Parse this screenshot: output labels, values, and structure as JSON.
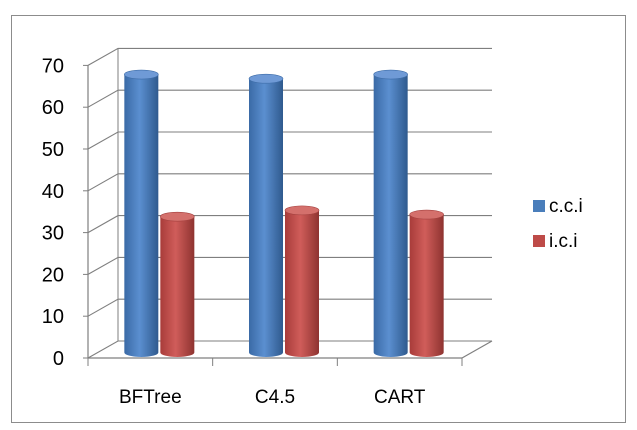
{
  "chart_data": {
    "type": "bar",
    "style": "3d-cylinder",
    "categories": [
      "BFTree",
      "C4.5",
      "CART"
    ],
    "series": [
      {
        "name": "c.c.i",
        "values": [
          66.5,
          65.5,
          66.5
        ],
        "color": "#4a7ebb"
      },
      {
        "name": "i.c.i",
        "values": [
          32.5,
          34,
          33
        ],
        "color": "#be4b48"
      }
    ],
    "title": "",
    "xlabel": "",
    "ylabel": "",
    "ylim": [
      0,
      70
    ],
    "yticks": [
      "0",
      "10",
      "20",
      "30",
      "40",
      "50",
      "60",
      "70"
    ],
    "grid": true,
    "legend": "right"
  }
}
